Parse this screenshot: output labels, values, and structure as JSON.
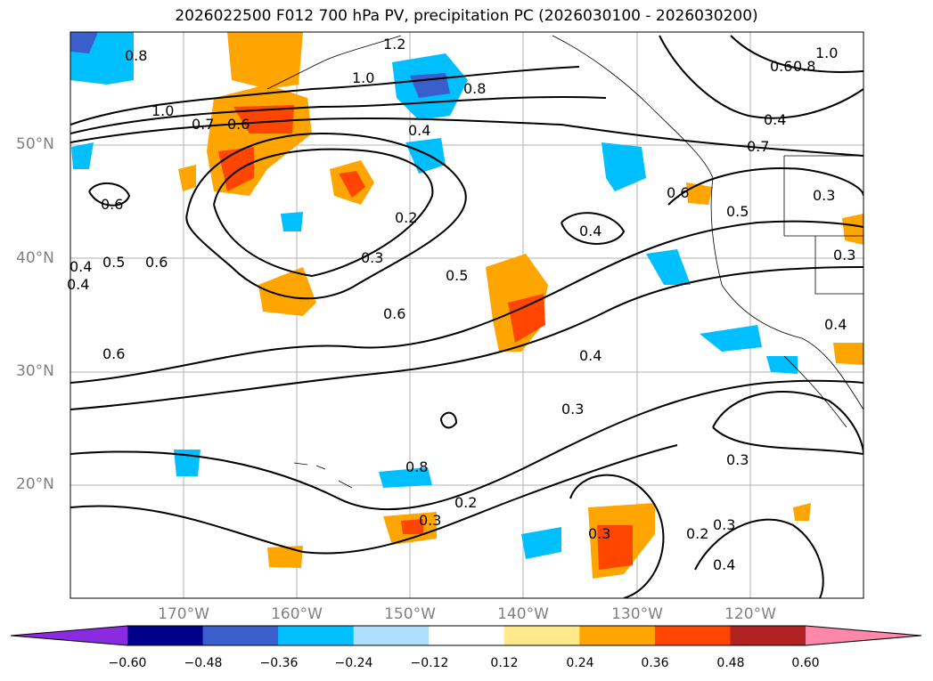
{
  "title": "2026022500 F012 700 hPa PV, precipitation PC (2026030100 - 2026030200)",
  "lat_labels": [
    "50°N",
    "40°N",
    "30°N",
    "20°N"
  ],
  "lon_labels": [
    "170°W",
    "160°W",
    "150°W",
    "140°W",
    "130°W",
    "120°W"
  ],
  "contour_labels": [
    "0.8",
    "1.0",
    "1.2",
    "0.8",
    "1.0",
    "0.7",
    "0.6",
    "0.4",
    "0.6",
    "0.2",
    "0.3",
    "0.4",
    "0.5",
    "0.6",
    "0.4",
    "0.3",
    "0.2",
    "0.3",
    "0.2",
    "0.3",
    "0.4",
    "0.3",
    "0.6",
    "0.5",
    "0.4",
    "0.3",
    "0.4",
    "0.5",
    "0.6",
    "0.6",
    "0.4",
    "0.7",
    "0.4",
    "0.3",
    "1.0",
    "0.8",
    "0.6",
    "0.8",
    "0.3"
  ],
  "colorbar": {
    "colors": [
      "#8a2be2",
      "#00008b",
      "#3a5fcd",
      "#00bfff",
      "#afe0fb",
      "#ffffff",
      "#ffe98a",
      "#ffa500",
      "#ff4500",
      "#b22222",
      "#ff88aa"
    ],
    "ticks": [
      "−0.60",
      "−0.48",
      "−0.36",
      "−0.24",
      "−0.12",
      "0.12",
      "0.24",
      "0.36",
      "0.48",
      "0.60"
    ]
  }
}
